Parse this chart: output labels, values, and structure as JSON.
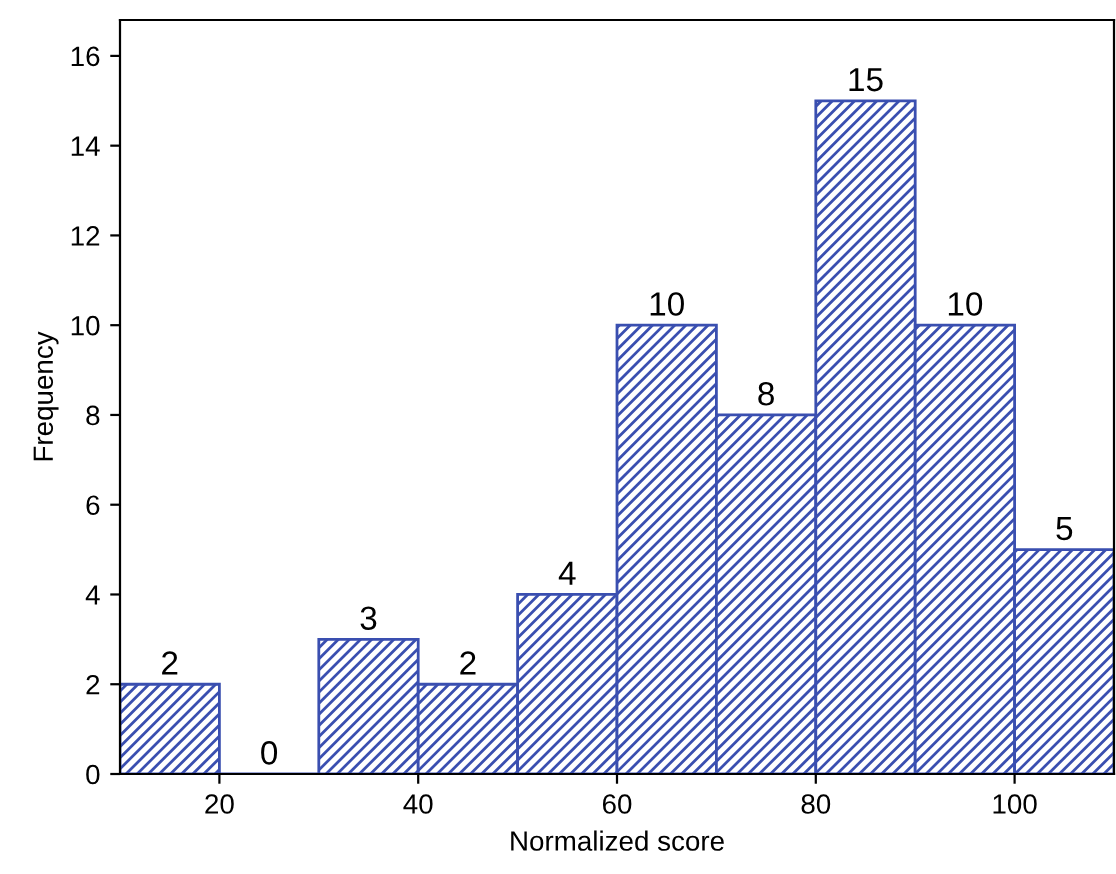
{
  "chart_data": {
    "type": "histogram",
    "xlabel": "Normalized score",
    "ylabel": "Frequency",
    "bins": [
      10,
      20,
      30,
      40,
      50,
      60,
      70,
      80,
      90,
      100,
      110
    ],
    "values": [
      2,
      0,
      3,
      2,
      4,
      10,
      8,
      15,
      10,
      5
    ],
    "color": "#3a4fb0",
    "data_labels": true,
    "xlim": [
      10,
      110
    ],
    "xticks": [
      20,
      40,
      60,
      80,
      100
    ],
    "ylim": [
      0,
      16.8
    ],
    "yticks": [
      0,
      2,
      4,
      6,
      8,
      10,
      12,
      14,
      16
    ],
    "grid": false
  }
}
